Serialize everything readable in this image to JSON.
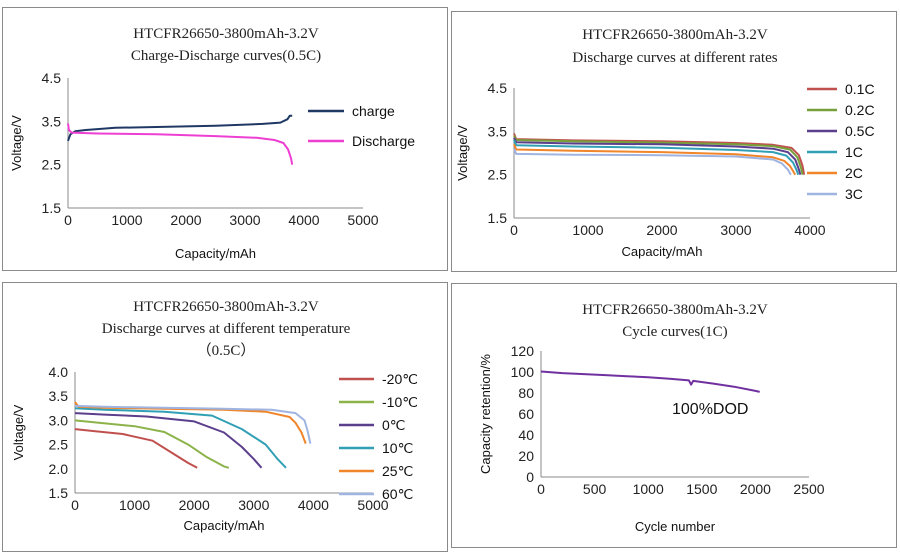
{
  "chart_data": [
    {
      "type": "line",
      "title": "HTCFR26650-3800mAh-3.2V",
      "subtitle": "Charge-Discharge curves(0.5C)",
      "xlabel": "Capacity/mAh",
      "ylabel": "Voltage/V",
      "xlim": [
        0,
        5000
      ],
      "ylim": [
        1.5,
        4.5
      ],
      "xticks": [
        "0",
        "1000",
        "2000",
        "3000",
        "4000",
        "5000"
      ],
      "yticks": [
        "1.5",
        "2.5",
        "3.5",
        "4.5"
      ],
      "legend_position": "right",
      "series": [
        {
          "name": "charge",
          "color": "#1f3864",
          "points": [
            [
              0,
              3.05
            ],
            [
              40,
              3.2
            ],
            [
              120,
              3.27
            ],
            [
              300,
              3.3
            ],
            [
              800,
              3.35
            ],
            [
              1500,
              3.37
            ],
            [
              2500,
              3.4
            ],
            [
              3300,
              3.44
            ],
            [
              3600,
              3.47
            ],
            [
              3720,
              3.55
            ],
            [
              3760,
              3.63
            ],
            [
              3800,
              3.63
            ]
          ]
        },
        {
          "name": "Discharge",
          "color": "#ee3fd3",
          "points": [
            [
              0,
              3.45
            ],
            [
              15,
              3.3
            ],
            [
              60,
              3.24
            ],
            [
              500,
              3.22
            ],
            [
              1500,
              3.2
            ],
            [
              2500,
              3.16
            ],
            [
              3200,
              3.12
            ],
            [
              3500,
              3.07
            ],
            [
              3650,
              3.0
            ],
            [
              3730,
              2.85
            ],
            [
              3780,
              2.65
            ],
            [
              3800,
              2.5
            ]
          ]
        }
      ]
    },
    {
      "type": "line",
      "title": "HTCFR26650-3800mAh-3.2V",
      "subtitle": "Discharge curves at different rates",
      "xlabel": "Capacity/mAh",
      "ylabel": "Voltage/V",
      "xlim": [
        0,
        4000
      ],
      "ylim": [
        1.5,
        4.5
      ],
      "xticks": [
        "0",
        "1000",
        "2000",
        "3000",
        "4000"
      ],
      "yticks": [
        "1.5",
        "2.5",
        "3.5",
        "4.5"
      ],
      "legend_position": "right",
      "series": [
        {
          "name": "0.1C",
          "color": "#c0504d",
          "points": [
            [
              0,
              3.45
            ],
            [
              30,
              3.32
            ],
            [
              800,
              3.29
            ],
            [
              2000,
              3.27
            ],
            [
              3000,
              3.23
            ],
            [
              3500,
              3.19
            ],
            [
              3750,
              3.12
            ],
            [
              3850,
              2.95
            ],
            [
              3900,
              2.7
            ],
            [
              3920,
              2.5
            ]
          ]
        },
        {
          "name": "0.2C",
          "color": "#77a03a",
          "points": [
            [
              0,
              3.4
            ],
            [
              30,
              3.3
            ],
            [
              800,
              3.27
            ],
            [
              2000,
              3.24
            ],
            [
              3000,
              3.2
            ],
            [
              3500,
              3.16
            ],
            [
              3730,
              3.08
            ],
            [
              3830,
              2.9
            ],
            [
              3880,
              2.65
            ],
            [
              3900,
              2.5
            ]
          ]
        },
        {
          "name": "0.5C",
          "color": "#5b3f8c",
          "points": [
            [
              0,
              3.35
            ],
            [
              30,
              3.25
            ],
            [
              800,
              3.22
            ],
            [
              2000,
              3.2
            ],
            [
              3000,
              3.15
            ],
            [
              3500,
              3.1
            ],
            [
              3700,
              3.02
            ],
            [
              3800,
              2.85
            ],
            [
              3850,
              2.62
            ],
            [
              3870,
              2.5
            ]
          ]
        },
        {
          "name": "1C",
          "color": "#31a0b5",
          "points": [
            [
              0,
              3.3
            ],
            [
              30,
              3.18
            ],
            [
              800,
              3.15
            ],
            [
              2000,
              3.12
            ],
            [
              3000,
              3.07
            ],
            [
              3500,
              3.02
            ],
            [
              3680,
              2.94
            ],
            [
              3770,
              2.78
            ],
            [
              3820,
              2.6
            ],
            [
              3840,
              2.5
            ]
          ]
        },
        {
          "name": "2C",
          "color": "#f0852a",
          "points": [
            [
              0,
              3.2
            ],
            [
              30,
              3.08
            ],
            [
              800,
              3.05
            ],
            [
              2000,
              3.02
            ],
            [
              3000,
              2.97
            ],
            [
              3500,
              2.9
            ],
            [
              3650,
              2.82
            ],
            [
              3730,
              2.7
            ],
            [
              3780,
              2.56
            ],
            [
              3800,
              2.5
            ]
          ]
        },
        {
          "name": "3C",
          "color": "#9fb4e0",
          "points": [
            [
              0,
              3.1
            ],
            [
              30,
              2.98
            ],
            [
              800,
              2.96
            ],
            [
              2000,
              2.95
            ],
            [
              3000,
              2.92
            ],
            [
              3500,
              2.85
            ],
            [
              3620,
              2.76
            ],
            [
              3700,
              2.62
            ],
            [
              3740,
              2.5
            ]
          ]
        }
      ]
    },
    {
      "type": "line",
      "title": "HTCFR26650-3800mAh-3.2V",
      "subtitle": "Discharge curves  at different temperature",
      "subtitle2": "（0.5C）",
      "xlabel": "Capacity/mAh",
      "ylabel": "Voltage/V",
      "xlim": [
        0,
        5000
      ],
      "ylim": [
        1.5,
        4.0
      ],
      "xticks": [
        "0",
        "1000",
        "2000",
        "3000",
        "4000",
        "5000"
      ],
      "yticks": [
        "1.5",
        "2.0",
        "2.5",
        "3.0",
        "3.5",
        "4.0"
      ],
      "legend_position": "right",
      "series": [
        {
          "name": "-20℃",
          "color": "#c0504d",
          "points": [
            [
              0,
              2.82
            ],
            [
              300,
              2.78
            ],
            [
              800,
              2.72
            ],
            [
              1300,
              2.58
            ],
            [
              1600,
              2.35
            ],
            [
              1900,
              2.12
            ],
            [
              2050,
              2.02
            ]
          ]
        },
        {
          "name": "-10℃",
          "color": "#8bb34a",
          "points": [
            [
              0,
              3.0
            ],
            [
              400,
              2.95
            ],
            [
              1000,
              2.88
            ],
            [
              1500,
              2.76
            ],
            [
              1900,
              2.5
            ],
            [
              2200,
              2.25
            ],
            [
              2500,
              2.05
            ],
            [
              2580,
              2.02
            ]
          ]
        },
        {
          "name": "0℃",
          "color": "#5b3f8c",
          "points": [
            [
              0,
              3.15
            ],
            [
              500,
              3.12
            ],
            [
              1200,
              3.08
            ],
            [
              2000,
              2.98
            ],
            [
              2500,
              2.75
            ],
            [
              2800,
              2.45
            ],
            [
              3000,
              2.2
            ],
            [
              3130,
              2.02
            ]
          ]
        },
        {
          "name": "10℃",
          "color": "#31a0b5",
          "points": [
            [
              0,
              3.25
            ],
            [
              500,
              3.22
            ],
            [
              1500,
              3.18
            ],
            [
              2300,
              3.1
            ],
            [
              2800,
              2.82
            ],
            [
              3200,
              2.5
            ],
            [
              3400,
              2.2
            ],
            [
              3540,
              2.02
            ]
          ]
        },
        {
          "name": "25℃",
          "color": "#f0852a",
          "points": [
            [
              0,
              3.38
            ],
            [
              60,
              3.28
            ],
            [
              500,
              3.26
            ],
            [
              1500,
              3.24
            ],
            [
              2500,
              3.22
            ],
            [
              3200,
              3.18
            ],
            [
              3600,
              3.07
            ],
            [
              3700,
              2.95
            ],
            [
              3800,
              2.75
            ],
            [
              3870,
              2.52
            ]
          ]
        },
        {
          "name": "60℃",
          "color": "#9fb4e0",
          "points": [
            [
              0,
              3.3
            ],
            [
              500,
              3.28
            ],
            [
              1500,
              3.26
            ],
            [
              2500,
              3.24
            ],
            [
              3300,
              3.22
            ],
            [
              3700,
              3.15
            ],
            [
              3850,
              3.0
            ],
            [
              3900,
              2.8
            ],
            [
              3950,
              2.52
            ]
          ]
        }
      ]
    },
    {
      "type": "line",
      "title": "HTCFR26650-3800mAh-3.2V",
      "subtitle": "Cycle curves(1C)",
      "xlabel": "Cycle number",
      "ylabel": "Capacity retention/%",
      "xlim": [
        0,
        2500
      ],
      "ylim": [
        0,
        120
      ],
      "xticks": [
        "0",
        "500",
        "1000",
        "1500",
        "2000",
        "2500"
      ],
      "yticks": [
        "0",
        "20",
        "40",
        "60",
        "80",
        "100",
        "120"
      ],
      "annotation": "100%DOD",
      "series": [
        {
          "color": "#7030a0",
          "points": [
            [
              0,
              100.5
            ],
            [
              200,
              99
            ],
            [
              400,
              98
            ],
            [
              600,
              97
            ],
            [
              800,
              96
            ],
            [
              1000,
              95
            ],
            [
              1200,
              93.5
            ],
            [
              1380,
              92
            ],
            [
              1400,
              88
            ],
            [
              1420,
              91.5
            ],
            [
              1600,
              89
            ],
            [
              1800,
              86
            ],
            [
              2000,
              82
            ],
            [
              2040,
              81
            ]
          ]
        }
      ]
    }
  ]
}
